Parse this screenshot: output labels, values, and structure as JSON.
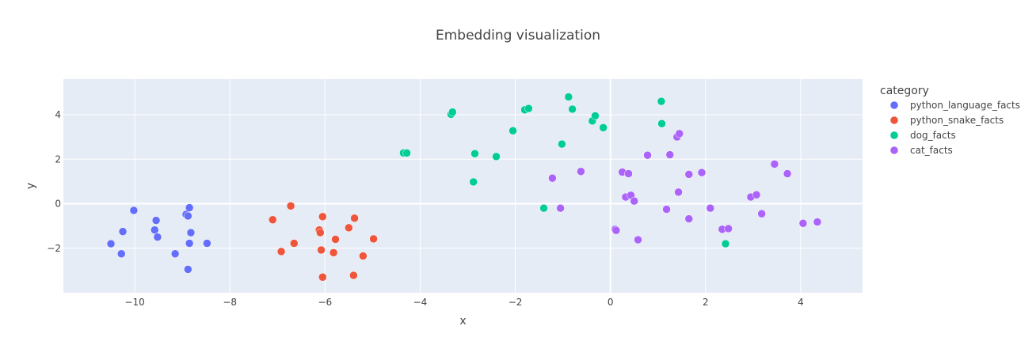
{
  "chart_data": {
    "type": "scatter",
    "title": "Embedding visualization",
    "xlabel": "x",
    "ylabel": "y",
    "xlim": [
      -11.5,
      5.3
    ],
    "ylim": [
      -4.0,
      5.6
    ],
    "xticks": [
      -10,
      -8,
      -6,
      -4,
      -2,
      0,
      2,
      4
    ],
    "yticks": [
      -2,
      0,
      2,
      4
    ],
    "grid": true,
    "legend_title": "category",
    "legend_position": "right",
    "series": [
      {
        "name": "python_language_facts",
        "color": "#636efa",
        "points": [
          [
            -10.5,
            -1.8
          ],
          [
            -10.28,
            -2.25
          ],
          [
            -10.25,
            -1.25
          ],
          [
            -10.02,
            -0.3
          ],
          [
            -9.55,
            -0.75
          ],
          [
            -9.58,
            -1.18
          ],
          [
            -9.52,
            -1.5
          ],
          [
            -9.15,
            -2.25
          ],
          [
            -8.92,
            -0.48
          ],
          [
            -8.88,
            -0.55
          ],
          [
            -8.85,
            -0.18
          ],
          [
            -8.85,
            -1.78
          ],
          [
            -8.82,
            -1.3
          ],
          [
            -8.88,
            -2.95
          ],
          [
            -8.48,
            -1.78
          ]
        ]
      },
      {
        "name": "python_snake_facts",
        "color": "#ef553b",
        "points": [
          [
            -7.1,
            -0.72
          ],
          [
            -6.92,
            -2.15
          ],
          [
            -6.72,
            -0.1
          ],
          [
            -6.65,
            -1.78
          ],
          [
            -6.12,
            -1.18
          ],
          [
            -6.1,
            -1.3
          ],
          [
            -6.08,
            -2.08
          ],
          [
            -6.05,
            -0.58
          ],
          [
            -6.05,
            -3.3
          ],
          [
            -5.82,
            -2.2
          ],
          [
            -5.78,
            -1.6
          ],
          [
            -5.5,
            -1.08
          ],
          [
            -5.4,
            -3.22
          ],
          [
            -5.38,
            -0.65
          ],
          [
            -5.2,
            -2.35
          ],
          [
            -4.98,
            -1.58
          ]
        ]
      },
      {
        "name": "dog_facts",
        "color": "#00cc96",
        "points": [
          [
            -4.35,
            2.28
          ],
          [
            -4.28,
            2.28
          ],
          [
            -3.35,
            4.02
          ],
          [
            -3.32,
            4.12
          ],
          [
            -2.88,
            0.98
          ],
          [
            -2.85,
            2.25
          ],
          [
            -2.4,
            2.12
          ],
          [
            -2.05,
            3.28
          ],
          [
            -1.8,
            4.22
          ],
          [
            -1.72,
            4.28
          ],
          [
            -1.4,
            -0.2
          ],
          [
            -1.02,
            2.68
          ],
          [
            -0.88,
            4.8
          ],
          [
            -0.8,
            4.25
          ],
          [
            -0.38,
            3.72
          ],
          [
            -0.32,
            3.95
          ],
          [
            -0.15,
            3.42
          ],
          [
            1.07,
            4.6
          ],
          [
            1.08,
            3.6
          ],
          [
            2.42,
            -1.8
          ]
        ]
      },
      {
        "name": "cat_facts",
        "color": "#ab63fa",
        "points": [
          [
            -1.22,
            1.15
          ],
          [
            -1.05,
            -0.2
          ],
          [
            -0.62,
            1.45
          ],
          [
            0.1,
            -1.15
          ],
          [
            0.12,
            -1.2
          ],
          [
            0.25,
            1.42
          ],
          [
            0.32,
            0.3
          ],
          [
            0.38,
            1.35
          ],
          [
            0.43,
            0.38
          ],
          [
            0.5,
            0.12
          ],
          [
            0.58,
            -1.62
          ],
          [
            0.78,
            2.18
          ],
          [
            1.18,
            -0.25
          ],
          [
            1.25,
            2.2
          ],
          [
            1.4,
            3.0
          ],
          [
            1.45,
            3.15
          ],
          [
            1.43,
            0.52
          ],
          [
            1.65,
            1.32
          ],
          [
            1.65,
            -0.68
          ],
          [
            1.92,
            1.4
          ],
          [
            2.1,
            -0.2
          ],
          [
            2.35,
            -1.15
          ],
          [
            2.48,
            -1.12
          ],
          [
            2.95,
            0.3
          ],
          [
            3.07,
            0.4
          ],
          [
            3.18,
            -0.45
          ],
          [
            3.45,
            1.78
          ],
          [
            3.72,
            1.35
          ],
          [
            4.05,
            -0.88
          ],
          [
            4.35,
            -0.82
          ]
        ]
      }
    ]
  }
}
